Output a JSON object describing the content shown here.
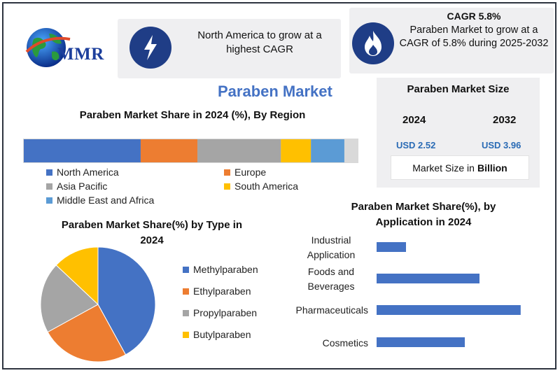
{
  "brand": {
    "logo_text": "MMR"
  },
  "title": "Paraben Market",
  "highlight_cards": {
    "card1": {
      "icon": "lightning-icon",
      "text": "North America to grow at a highest CAGR"
    },
    "card2": {
      "icon": "flame-icon",
      "heading": "CAGR 5.8%",
      "text": "Paraben Market to grow at a CAGR of 5.8% during 2025-2032"
    }
  },
  "market_size": {
    "title": "Paraben Market Size",
    "year1": "2024",
    "year2": "2032",
    "value1": "USD 2.52",
    "value2": "USD 3.96",
    "note_prefix": "Market Size in",
    "note_unit": "Billion"
  },
  "colors": {
    "blue": "#4472c4",
    "orange": "#ed7d31",
    "gray": "#a5a5a5",
    "yellow": "#ffc000",
    "light_blue": "#5b9bd5",
    "accent": "#4472c4",
    "icon_bg": "#1f3d86"
  },
  "chart_data": [
    {
      "type": "bar",
      "orientation": "stacked-horizontal",
      "title": "Paraben Market Share in 2024 (%), By Region",
      "series": [
        {
          "name": "North America",
          "values": [
            35
          ]
        },
        {
          "name": "Europe",
          "values": [
            17
          ]
        },
        {
          "name": "Asia Pacific",
          "values": [
            25
          ]
        },
        {
          "name": "South America",
          "values": [
            9
          ]
        },
        {
          "name": "Middle East and Africa",
          "values": [
            10
          ]
        }
      ],
      "xlim": [
        0,
        100
      ],
      "legend": "bottom",
      "grid": false
    },
    {
      "type": "pie",
      "title": "Paraben Market Share(%) by Type in 2024",
      "categories": [
        "Methylparaben",
        "Ethylparaben",
        "Propylparaben",
        "Butylparaben"
      ],
      "values": [
        42,
        25,
        20,
        13
      ],
      "legend": "right"
    },
    {
      "type": "bar",
      "orientation": "horizontal",
      "title": "Paraben Market Share(%), by Application in 2024",
      "categories": [
        "Industrial Application",
        "Foods and Beverages",
        "Pharmaceuticals",
        "Cosmetics"
      ],
      "values": [
        20,
        70,
        98,
        60
      ],
      "xlim": [
        0,
        100
      ],
      "grid": false
    }
  ]
}
